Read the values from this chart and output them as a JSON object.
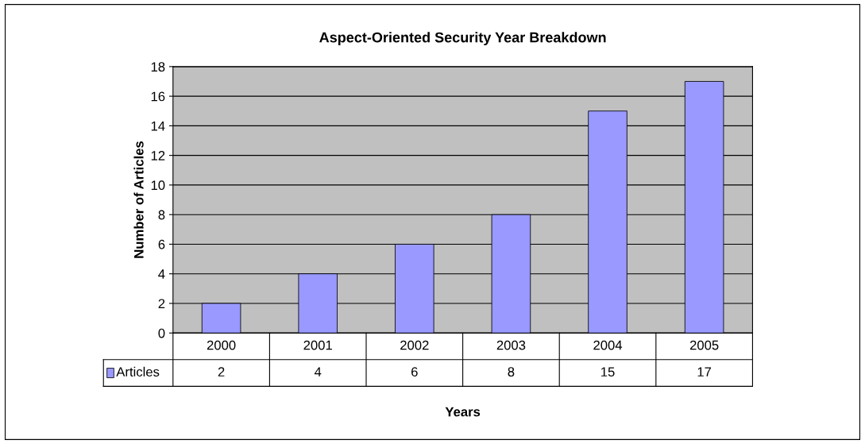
{
  "chart_data": {
    "type": "bar",
    "title": "Aspect-Oriented Security Year Breakdown",
    "xlabel": "Years",
    "ylabel": "Number of Articles",
    "categories": [
      "2000",
      "2001",
      "2002",
      "2003",
      "2004",
      "2005"
    ],
    "series": [
      {
        "name": "Articles",
        "color": "#9999ff",
        "values": [
          2,
          4,
          6,
          8,
          15,
          17
        ]
      }
    ],
    "ylim": [
      0,
      18
    ],
    "yticks": [
      0,
      2,
      4,
      6,
      8,
      10,
      12,
      14,
      16,
      18
    ],
    "grid": "y",
    "legend": "bottom",
    "data_labels": true
  }
}
